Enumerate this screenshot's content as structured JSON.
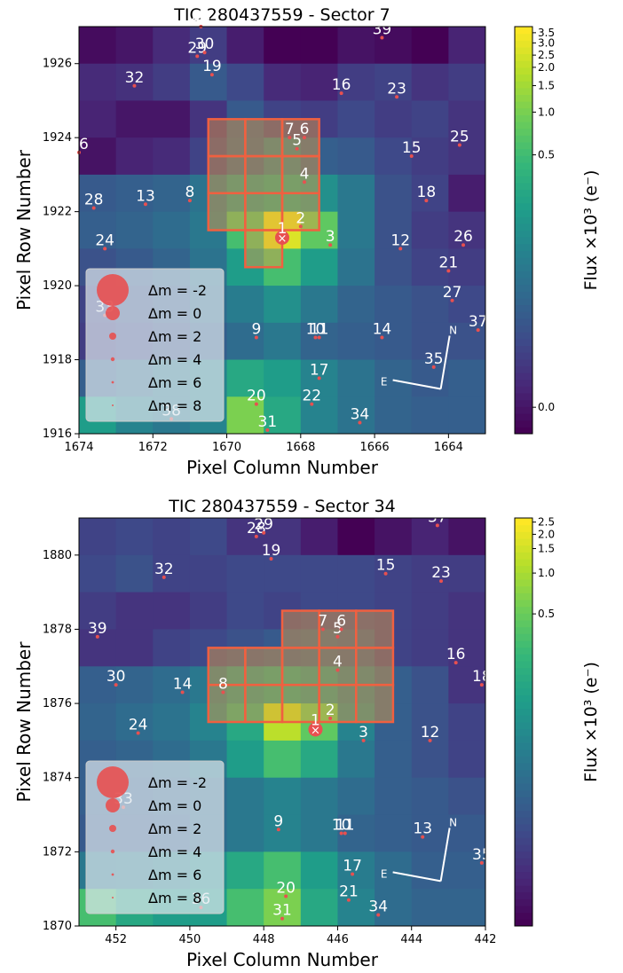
{
  "colors": {
    "aperture_fill": "#e8a040",
    "aperture_edge": "#f06040",
    "star": "#e85050",
    "label": "#ffffff",
    "legend_bg": "#dfe8ee"
  },
  "chart_data": [
    {
      "type": "heatmap",
      "title": "TIC 280437559 - Sector 7",
      "xlabel": "Pixel Column Number",
      "ylabel": "Pixel Row Number",
      "colorbar_label": "Flux ×10³ (e⁻)",
      "xlim": [
        1674,
        1663
      ],
      "ylim": [
        1916,
        1927
      ],
      "x_ticks": [
        1674,
        1672,
        1670,
        1668,
        1666,
        1664
      ],
      "y_ticks": [
        1916,
        1918,
        1920,
        1922,
        1924,
        1926
      ],
      "colorbar_ticks": [
        "0.0",
        "0.5",
        "1.0",
        "1.5",
        "2.0",
        "2.5",
        "3.0",
        "3.5"
      ],
      "colorbar_tick_fracs": [
        0.065,
        0.685,
        0.79,
        0.855,
        0.9,
        0.93,
        0.96,
        0.985
      ],
      "grid_levels": [
        [
          0.03,
          0.06,
          0.12,
          0.18,
          0.08,
          0.0,
          0.0,
          0.05,
          0.03,
          0.0,
          0.1
        ],
        [
          0.12,
          0.14,
          0.18,
          0.28,
          0.22,
          0.12,
          0.1,
          0.18,
          0.2,
          0.15,
          0.18
        ],
        [
          0.1,
          0.06,
          0.06,
          0.15,
          0.28,
          0.2,
          0.18,
          0.22,
          0.18,
          0.2,
          0.15
        ],
        [
          0.05,
          0.1,
          0.12,
          0.2,
          0.3,
          0.4,
          0.3,
          0.28,
          0.22,
          0.18,
          0.15
        ],
        [
          0.28,
          0.3,
          0.32,
          0.38,
          0.5,
          0.55,
          0.5,
          0.4,
          0.25,
          0.2,
          0.08
        ],
        [
          0.3,
          0.32,
          0.35,
          0.4,
          0.7,
          0.95,
          0.75,
          0.4,
          0.25,
          0.18,
          0.15
        ],
        [
          0.25,
          0.28,
          0.32,
          0.38,
          0.55,
          0.7,
          0.55,
          0.38,
          0.25,
          0.2,
          0.18
        ],
        [
          0.2,
          0.25,
          0.28,
          0.35,
          0.42,
          0.5,
          0.4,
          0.32,
          0.28,
          0.25,
          0.22
        ],
        [
          0.18,
          0.22,
          0.25,
          0.3,
          0.35,
          0.4,
          0.32,
          0.3,
          0.28,
          0.25,
          0.25
        ],
        [
          0.3,
          0.35,
          0.4,
          0.45,
          0.6,
          0.55,
          0.45,
          0.38,
          0.32,
          0.28,
          0.3
        ],
        [
          0.55,
          0.45,
          0.4,
          0.45,
          0.8,
          0.6,
          0.45,
          0.38,
          0.32,
          0.3,
          0.3
        ]
      ],
      "aperture": [
        [
          1670,
          1923
        ],
        [
          1669,
          1923
        ],
        [
          1668,
          1923
        ],
        [
          1670,
          1922
        ],
        [
          1669,
          1922
        ],
        [
          1668,
          1922
        ],
        [
          1670,
          1921
        ],
        [
          1669,
          1921
        ],
        [
          1668,
          1921
        ],
        [
          1669,
          1920
        ]
      ],
      "target_star": {
        "label": "1",
        "x": 1668.5,
        "y": 1921.3
      },
      "stars": [
        {
          "label": "2",
          "x": 1668.0,
          "y": 1921.6
        },
        {
          "label": "3",
          "x": 1667.2,
          "y": 1921.1
        },
        {
          "label": "4",
          "x": 1667.9,
          "y": 1922.8
        },
        {
          "label": "5",
          "x": 1668.1,
          "y": 1923.7
        },
        {
          "label": "6",
          "x": 1667.9,
          "y": 1924.0
        },
        {
          "label": "7",
          "x": 1668.3,
          "y": 1924.0
        },
        {
          "label": "8",
          "x": 1671.0,
          "y": 1922.3
        },
        {
          "label": "9",
          "x": 1669.2,
          "y": 1918.6
        },
        {
          "label": "10",
          "x": 1667.6,
          "y": 1918.6
        },
        {
          "label": "11",
          "x": 1667.5,
          "y": 1918.6
        },
        {
          "label": "12",
          "x": 1665.3,
          "y": 1921.0
        },
        {
          "label": "13",
          "x": 1672.2,
          "y": 1922.2
        },
        {
          "label": "14",
          "x": 1665.8,
          "y": 1918.6
        },
        {
          "label": "15",
          "x": 1665.0,
          "y": 1923.5
        },
        {
          "label": "16",
          "x": 1666.9,
          "y": 1925.2
        },
        {
          "label": "17",
          "x": 1667.5,
          "y": 1917.5
        },
        {
          "label": "18",
          "x": 1664.6,
          "y": 1922.3
        },
        {
          "label": "19",
          "x": 1670.4,
          "y": 1925.7
        },
        {
          "label": "20",
          "x": 1669.2,
          "y": 1916.8
        },
        {
          "label": "21",
          "x": 1664.0,
          "y": 1920.4
        },
        {
          "label": "22",
          "x": 1667.7,
          "y": 1916.8
        },
        {
          "label": "23",
          "x": 1665.4,
          "y": 1925.1
        },
        {
          "label": "24",
          "x": 1673.3,
          "y": 1921.0
        },
        {
          "label": "25",
          "x": 1663.7,
          "y": 1923.8
        },
        {
          "label": "26",
          "x": 1663.6,
          "y": 1921.1
        },
        {
          "label": "27",
          "x": 1663.9,
          "y": 1919.6
        },
        {
          "label": "28",
          "x": 1673.6,
          "y": 1922.1
        },
        {
          "label": "29",
          "x": 1670.8,
          "y": 1926.2
        },
        {
          "label": "30",
          "x": 1670.6,
          "y": 1926.3
        },
        {
          "label": "31",
          "x": 1668.9,
          "y": 1916.1
        },
        {
          "label": "32",
          "x": 1672.5,
          "y": 1925.4
        },
        {
          "label": "33",
          "x": 1673.3,
          "y": 1919.2
        },
        {
          "label": "34",
          "x": 1666.4,
          "y": 1916.3
        },
        {
          "label": "35",
          "x": 1664.4,
          "y": 1917.8
        },
        {
          "label": "36",
          "x": 1674.0,
          "y": 1923.6
        },
        {
          "label": "37",
          "x": 1663.2,
          "y": 1918.8
        },
        {
          "label": "38",
          "x": 1671.5,
          "y": 1916.4
        },
        {
          "label": "39",
          "x": 1665.8,
          "y": 1926.7
        },
        {
          "label": "40",
          "x": 1670.7,
          "y": 1927.0
        }
      ],
      "legend": {
        "placement": "lower-left",
        "entries": [
          {
            "label": "Δm =  -2",
            "r": 18
          },
          {
            "label": "Δm =  0",
            "r": 8
          },
          {
            "label": "Δm =  2",
            "r": 4
          },
          {
            "label": "Δm =  4",
            "r": 2.2
          },
          {
            "label": "Δm =  6",
            "r": 1.4
          },
          {
            "label": "Δm =  8",
            "r": 1
          }
        ]
      },
      "compass": {
        "north": "N",
        "east": "E"
      }
    },
    {
      "type": "heatmap",
      "title": "TIC 280437559 - Sector 34",
      "xlabel": "Pixel Column Number",
      "ylabel": "Pixel Row Number",
      "colorbar_label": "Flux ×10³ (e⁻)",
      "xlim": [
        453,
        442
      ],
      "ylim": [
        1870,
        1881
      ],
      "x_ticks": [
        452,
        450,
        448,
        446,
        444,
        442
      ],
      "y_ticks": [
        1870,
        1872,
        1874,
        1876,
        1878,
        1880
      ],
      "colorbar_ticks": [
        "0.5",
        "1.0",
        "1.5",
        "2.0",
        "2.5"
      ],
      "colorbar_tick_fracs": [
        0.765,
        0.865,
        0.925,
        0.96,
        0.99
      ],
      "grid_levels": [
        [
          0.2,
          0.22,
          0.2,
          0.22,
          0.15,
          0.15,
          0.08,
          0.0,
          0.05,
          0.1,
          0.05
        ],
        [
          0.22,
          0.25,
          0.2,
          0.2,
          0.22,
          0.22,
          0.22,
          0.22,
          0.2,
          0.18,
          0.18
        ],
        [
          0.18,
          0.15,
          0.15,
          0.18,
          0.22,
          0.2,
          0.22,
          0.22,
          0.2,
          0.18,
          0.15
        ],
        [
          0.15,
          0.15,
          0.2,
          0.22,
          0.25,
          0.28,
          0.3,
          0.28,
          0.2,
          0.18,
          0.15
        ],
        [
          0.3,
          0.32,
          0.35,
          0.4,
          0.5,
          0.55,
          0.5,
          0.4,
          0.3,
          0.25,
          0.15
        ],
        [
          0.32,
          0.35,
          0.38,
          0.45,
          0.6,
          0.9,
          0.75,
          0.45,
          0.3,
          0.25,
          0.2
        ],
        [
          0.3,
          0.32,
          0.35,
          0.4,
          0.55,
          0.7,
          0.6,
          0.4,
          0.3,
          0.25,
          0.2
        ],
        [
          0.3,
          0.3,
          0.32,
          0.35,
          0.4,
          0.45,
          0.4,
          0.35,
          0.3,
          0.28,
          0.25
        ],
        [
          0.28,
          0.28,
          0.3,
          0.35,
          0.4,
          0.45,
          0.4,
          0.32,
          0.3,
          0.28,
          0.28
        ],
        [
          0.4,
          0.42,
          0.45,
          0.5,
          0.6,
          0.7,
          0.55,
          0.42,
          0.35,
          0.3,
          0.3
        ],
        [
          0.7,
          0.6,
          0.55,
          0.55,
          0.7,
          0.8,
          0.6,
          0.45,
          0.35,
          0.32,
          0.32
        ]
      ],
      "aperture": [
        [
          447,
          1877
        ],
        [
          446,
          1877
        ],
        [
          445,
          1877
        ],
        [
          449,
          1876
        ],
        [
          448,
          1876
        ],
        [
          447,
          1876
        ],
        [
          446,
          1876
        ],
        [
          445,
          1876
        ],
        [
          449,
          1875
        ],
        [
          448,
          1875
        ],
        [
          447,
          1875
        ],
        [
          446,
          1875
        ],
        [
          445,
          1875
        ]
      ],
      "target_star": {
        "label": "1",
        "x": 446.6,
        "y": 1875.3
      },
      "stars": [
        {
          "label": "2",
          "x": 446.2,
          "y": 1875.6
        },
        {
          "label": "3",
          "x": 445.3,
          "y": 1875.0
        },
        {
          "label": "4",
          "x": 446.0,
          "y": 1876.9
        },
        {
          "label": "5",
          "x": 446.0,
          "y": 1877.8
        },
        {
          "label": "6",
          "x": 445.9,
          "y": 1878.0
        },
        {
          "label": "7",
          "x": 446.4,
          "y": 1878.0
        },
        {
          "label": "8",
          "x": 449.1,
          "y": 1876.3
        },
        {
          "label": "9",
          "x": 447.6,
          "y": 1872.6
        },
        {
          "label": "10",
          "x": 445.9,
          "y": 1872.5
        },
        {
          "label": "11",
          "x": 445.8,
          "y": 1872.5
        },
        {
          "label": "12",
          "x": 443.5,
          "y": 1875.0
        },
        {
          "label": "13",
          "x": 443.7,
          "y": 1872.4
        },
        {
          "label": "14",
          "x": 450.2,
          "y": 1876.3
        },
        {
          "label": "15",
          "x": 444.7,
          "y": 1879.5
        },
        {
          "label": "16",
          "x": 442.8,
          "y": 1877.1
        },
        {
          "label": "17",
          "x": 445.6,
          "y": 1871.4
        },
        {
          "label": "18",
          "x": 442.1,
          "y": 1876.5
        },
        {
          "label": "19",
          "x": 447.8,
          "y": 1879.9
        },
        {
          "label": "20",
          "x": 447.4,
          "y": 1870.8
        },
        {
          "label": "21",
          "x": 445.7,
          "y": 1870.7
        },
        {
          "label": "23",
          "x": 443.2,
          "y": 1879.3
        },
        {
          "label": "24",
          "x": 451.4,
          "y": 1875.2
        },
        {
          "label": "28",
          "x": 448.2,
          "y": 1880.5
        },
        {
          "label": "29",
          "x": 448.0,
          "y": 1880.6
        },
        {
          "label": "30",
          "x": 452.0,
          "y": 1876.5
        },
        {
          "label": "31",
          "x": 447.5,
          "y": 1870.2
        },
        {
          "label": "32",
          "x": 450.7,
          "y": 1879.4
        },
        {
          "label": "33",
          "x": 451.8,
          "y": 1873.2
        },
        {
          "label": "34",
          "x": 444.9,
          "y": 1870.3
        },
        {
          "label": "35",
          "x": 442.1,
          "y": 1871.7
        },
        {
          "label": "36",
          "x": 449.7,
          "y": 1870.5
        },
        {
          "label": "37",
          "x": 443.3,
          "y": 1880.8
        },
        {
          "label": "39",
          "x": 452.5,
          "y": 1877.8
        }
      ],
      "legend": {
        "placement": "lower-left",
        "entries": [
          {
            "label": "Δm =  -2",
            "r": 18
          },
          {
            "label": "Δm =  0",
            "r": 8
          },
          {
            "label": "Δm =  2",
            "r": 4
          },
          {
            "label": "Δm =  4",
            "r": 2.2
          },
          {
            "label": "Δm =  6",
            "r": 1.4
          },
          {
            "label": "Δm =  8",
            "r": 1
          }
        ]
      },
      "compass": {
        "north": "N",
        "east": "E"
      }
    }
  ]
}
